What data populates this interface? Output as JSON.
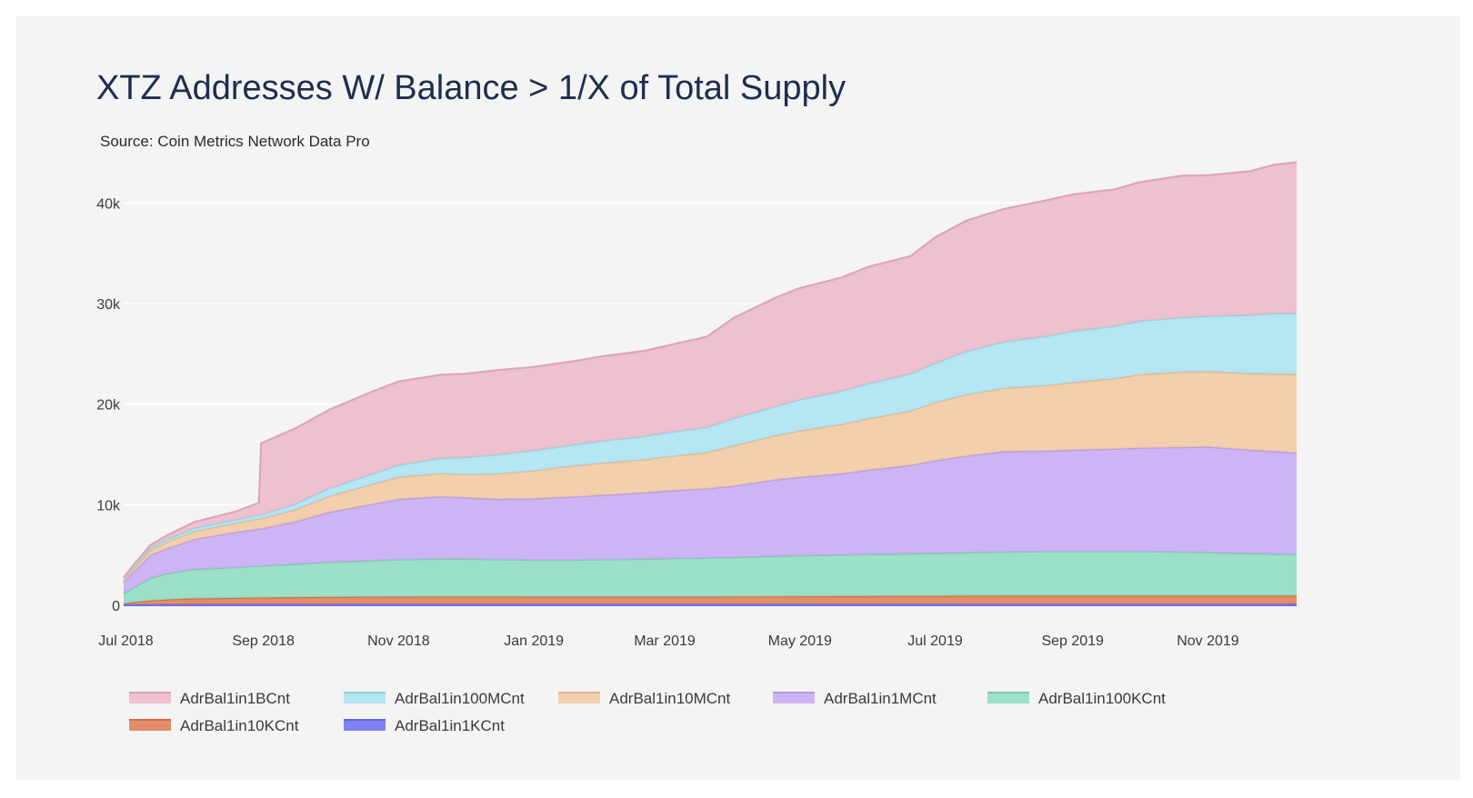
{
  "title": "XTZ Addresses W/ Balance > 1/X of Total Supply",
  "subtitle": "Source: Coin Metrics Network Data Pro",
  "chart_data": {
    "type": "area",
    "stacked": true,
    "grid": true,
    "legend_position": "bottom",
    "ylim": [
      0,
      45000
    ],
    "y_ticks": [
      0,
      10000,
      20000,
      30000,
      40000
    ],
    "y_tick_labels": [
      "0",
      "10k",
      "20k",
      "30k",
      "40k"
    ],
    "x_ticks": [
      "2018-07-01",
      "2018-09-01",
      "2018-11-01",
      "2019-01-01",
      "2019-03-01",
      "2019-05-01",
      "2019-07-01",
      "2019-09-01",
      "2019-11-01"
    ],
    "x_tick_labels": [
      "Jul 2018",
      "Sep 2018",
      "Nov 2018",
      "Jan 2019",
      "Mar 2019",
      "May 2019",
      "Jul 2019",
      "Sep 2019",
      "Nov 2019"
    ],
    "x": [
      "2018-06-30",
      "2018-07-05",
      "2018-07-12",
      "2018-07-20",
      "2018-08-01",
      "2018-08-20",
      "2018-08-30",
      "2018-08-31",
      "2018-09-15",
      "2018-10-01",
      "2018-10-20",
      "2018-11-01",
      "2018-11-20",
      "2018-12-01",
      "2018-12-15",
      "2019-01-01",
      "2019-01-20",
      "2019-02-01",
      "2019-02-20",
      "2019-03-01",
      "2019-03-20",
      "2019-04-01",
      "2019-04-20",
      "2019-05-01",
      "2019-05-20",
      "2019-06-01",
      "2019-06-20",
      "2019-07-01",
      "2019-07-15",
      "2019-08-01",
      "2019-08-20",
      "2019-09-01",
      "2019-09-20",
      "2019-10-01",
      "2019-10-20",
      "2019-11-01",
      "2019-11-20",
      "2019-12-01",
      "2019-12-11"
    ],
    "series": [
      {
        "name": "AdrBal1in1KCnt",
        "color": "#6b6ef0",
        "values": [
          20,
          40,
          60,
          80,
          100,
          110,
          115,
          115,
          120,
          120,
          125,
          125,
          125,
          125,
          125,
          125,
          125,
          125,
          125,
          125,
          125,
          125,
          125,
          125,
          125,
          125,
          125,
          125,
          125,
          125,
          125,
          125,
          125,
          125,
          125,
          125,
          125,
          125,
          125
        ]
      },
      {
        "name": "AdrBal1in10KCnt",
        "color": "#e07a4f",
        "values": [
          150,
          280,
          420,
          500,
          580,
          620,
          650,
          650,
          680,
          700,
          720,
          730,
          740,
          740,
          740,
          730,
          730,
          730,
          730,
          730,
          730,
          740,
          760,
          770,
          780,
          790,
          800,
          810,
          820,
          830,
          830,
          830,
          830,
          830,
          830,
          830,
          830,
          830,
          830
        ]
      },
      {
        "name": "AdrBal1in100KCnt",
        "color": "#8ddcc0",
        "values": [
          1000,
          1500,
          2200,
          2600,
          2900,
          3050,
          3150,
          3150,
          3300,
          3450,
          3600,
          3700,
          3750,
          3750,
          3700,
          3650,
          3650,
          3700,
          3750,
          3800,
          3850,
          3900,
          4000,
          4050,
          4100,
          4150,
          4200,
          4250,
          4300,
          4350,
          4400,
          4400,
          4400,
          4400,
          4350,
          4300,
          4200,
          4150,
          4100
        ]
      },
      {
        "name": "AdrBal1in1MCnt",
        "color": "#c5a8f5",
        "values": [
          1100,
          1600,
          2300,
          2500,
          3000,
          3500,
          3700,
          3700,
          4200,
          5000,
          5600,
          6000,
          6200,
          6100,
          6000,
          6100,
          6300,
          6400,
          6600,
          6700,
          6900,
          7100,
          7600,
          7800,
          8100,
          8400,
          8800,
          9200,
          9600,
          10000,
          10000,
          10100,
          10200,
          10300,
          10400,
          10500,
          10300,
          10200,
          10100
        ]
      },
      {
        "name": "AdrBal1in10MCnt",
        "color": "#f2c8a0",
        "values": [
          200,
          350,
          500,
          650,
          780,
          900,
          1000,
          1000,
          1200,
          1600,
          2000,
          2200,
          2300,
          2300,
          2500,
          2800,
          3100,
          3200,
          3300,
          3400,
          3600,
          4000,
          4400,
          4600,
          4900,
          5100,
          5400,
          5800,
          6100,
          6300,
          6500,
          6700,
          7000,
          7300,
          7500,
          7500,
          7600,
          7700,
          7800
        ]
      },
      {
        "name": "AdrBal1in100MCnt",
        "color": "#a8e3f2",
        "values": [
          100,
          150,
          200,
          280,
          330,
          370,
          400,
          400,
          550,
          800,
          1000,
          1200,
          1500,
          1700,
          1900,
          2000,
          2100,
          2200,
          2300,
          2400,
          2500,
          2700,
          2900,
          3100,
          3300,
          3500,
          3700,
          3900,
          4300,
          4600,
          4900,
          5100,
          5200,
          5300,
          5400,
          5500,
          5800,
          6000,
          6100
        ]
      },
      {
        "name": "AdrBal1in1BCnt",
        "color": "#edb6c6",
        "values": [
          200,
          250,
          300,
          400,
          600,
          800,
          1200,
          7100,
          7500,
          7800,
          8200,
          8300,
          8300,
          8300,
          8400,
          8300,
          8300,
          8400,
          8500,
          8600,
          9000,
          10000,
          10800,
          11100,
          11300,
          11600,
          11700,
          12500,
          13000,
          13200,
          13500,
          13600,
          13600,
          13800,
          14100,
          14000,
          14300,
          14800,
          15000
        ]
      }
    ]
  }
}
